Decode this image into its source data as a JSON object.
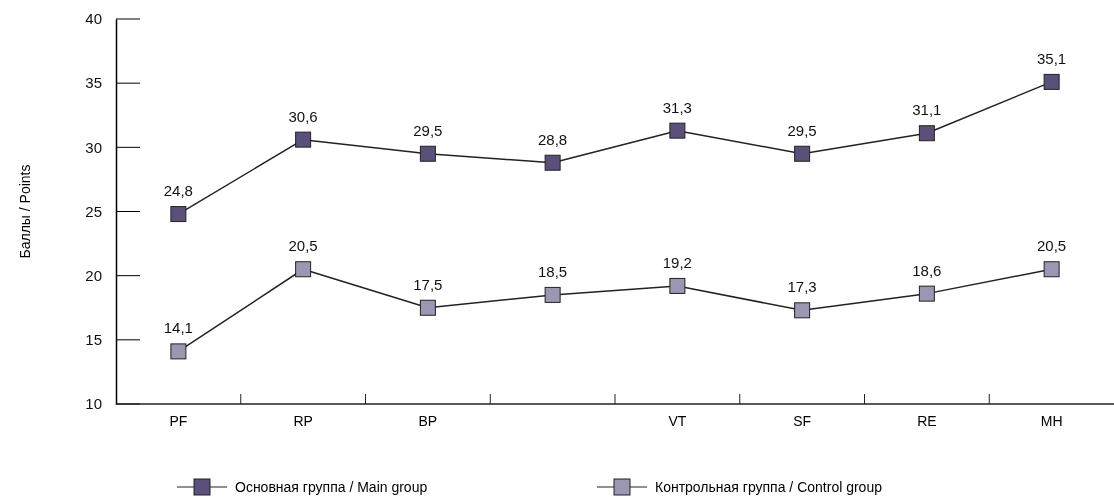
{
  "chart_data": {
    "type": "line",
    "ylabel": "Баллы / Points",
    "categories": [
      "PF",
      "RP",
      "BP",
      null,
      "VT",
      "SF",
      "RE",
      "MH"
    ],
    "series": [
      {
        "name": "Основная группа / Main group",
        "color": "#5b5079",
        "values": [
          24.8,
          30.6,
          29.5,
          28.8,
          31.3,
          29.5,
          31.1,
          35.1
        ],
        "value_labels": [
          "24,8",
          "30,6",
          "29,5",
          "28,8",
          "31,3",
          "29,5",
          "31,1",
          "35,1"
        ]
      },
      {
        "name": "Контрольная группа / Control group",
        "color": "#9b96b2",
        "values": [
          14.1,
          20.5,
          17.5,
          18.5,
          19.2,
          17.3,
          18.6,
          20.5
        ],
        "value_labels": [
          "14,1",
          "20,5",
          "17,5",
          "18,5",
          "19,2",
          "17,3",
          "18,6",
          "20,5"
        ]
      }
    ],
    "ylim": [
      10,
      40
    ],
    "yticks": [
      10,
      15,
      20,
      25,
      30,
      35,
      40
    ],
    "marker": "square",
    "line_style": "solid",
    "legend": "bottom",
    "grid": false
  }
}
